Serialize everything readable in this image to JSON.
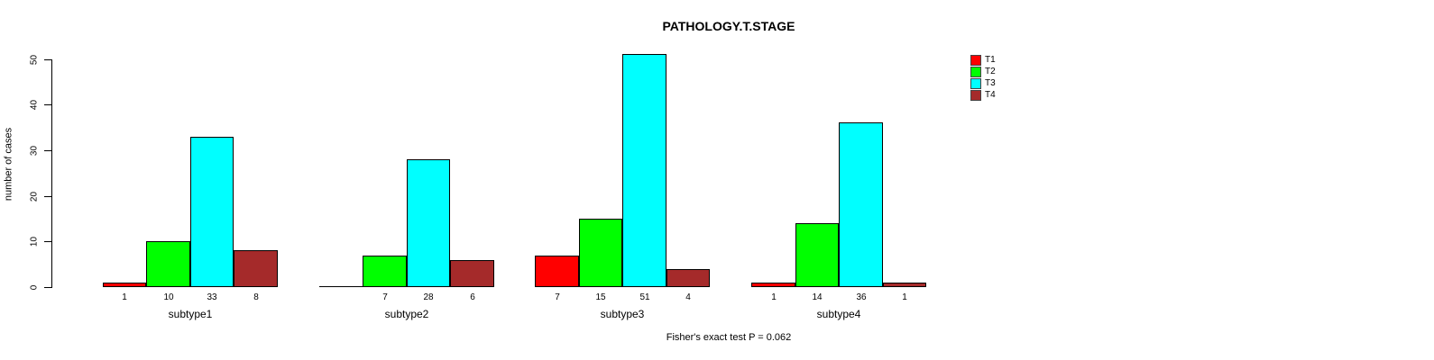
{
  "chart_data": {
    "type": "bar",
    "grouped": true,
    "title": "PATHOLOGY.T.STAGE",
    "xlabel": "",
    "ylabel": "number of cases",
    "ylim": [
      0,
      50
    ],
    "yticks": [
      0,
      10,
      20,
      30,
      40,
      50
    ],
    "grid": false,
    "legend_position": "top-right-outside",
    "categories": [
      "subtype1",
      "subtype2",
      "subtype3",
      "subtype4"
    ],
    "series": [
      {
        "name": "T1",
        "color": "#FF0000",
        "values": [
          1,
          0,
          7,
          1
        ]
      },
      {
        "name": "T2",
        "color": "#00FF00",
        "values": [
          10,
          7,
          15,
          14
        ]
      },
      {
        "name": "T3",
        "color": "#00FFFF",
        "values": [
          33,
          28,
          51,
          36
        ]
      },
      {
        "name": "T4",
        "color": "#A52A2A",
        "values": [
          8,
          6,
          4,
          1
        ]
      }
    ],
    "bar_labels": [
      [
        "1",
        "10",
        "33",
        "8"
      ],
      [
        "",
        "7",
        "28",
        "6"
      ],
      [
        "7",
        "15",
        "51",
        "4"
      ],
      [
        "1",
        "14",
        "36",
        "1"
      ]
    ],
    "annotation": "Fisher's exact test P = 0.062"
  },
  "colors": {
    "background": "#FFFFFF",
    "axis": "#000000",
    "text": "#000000"
  }
}
